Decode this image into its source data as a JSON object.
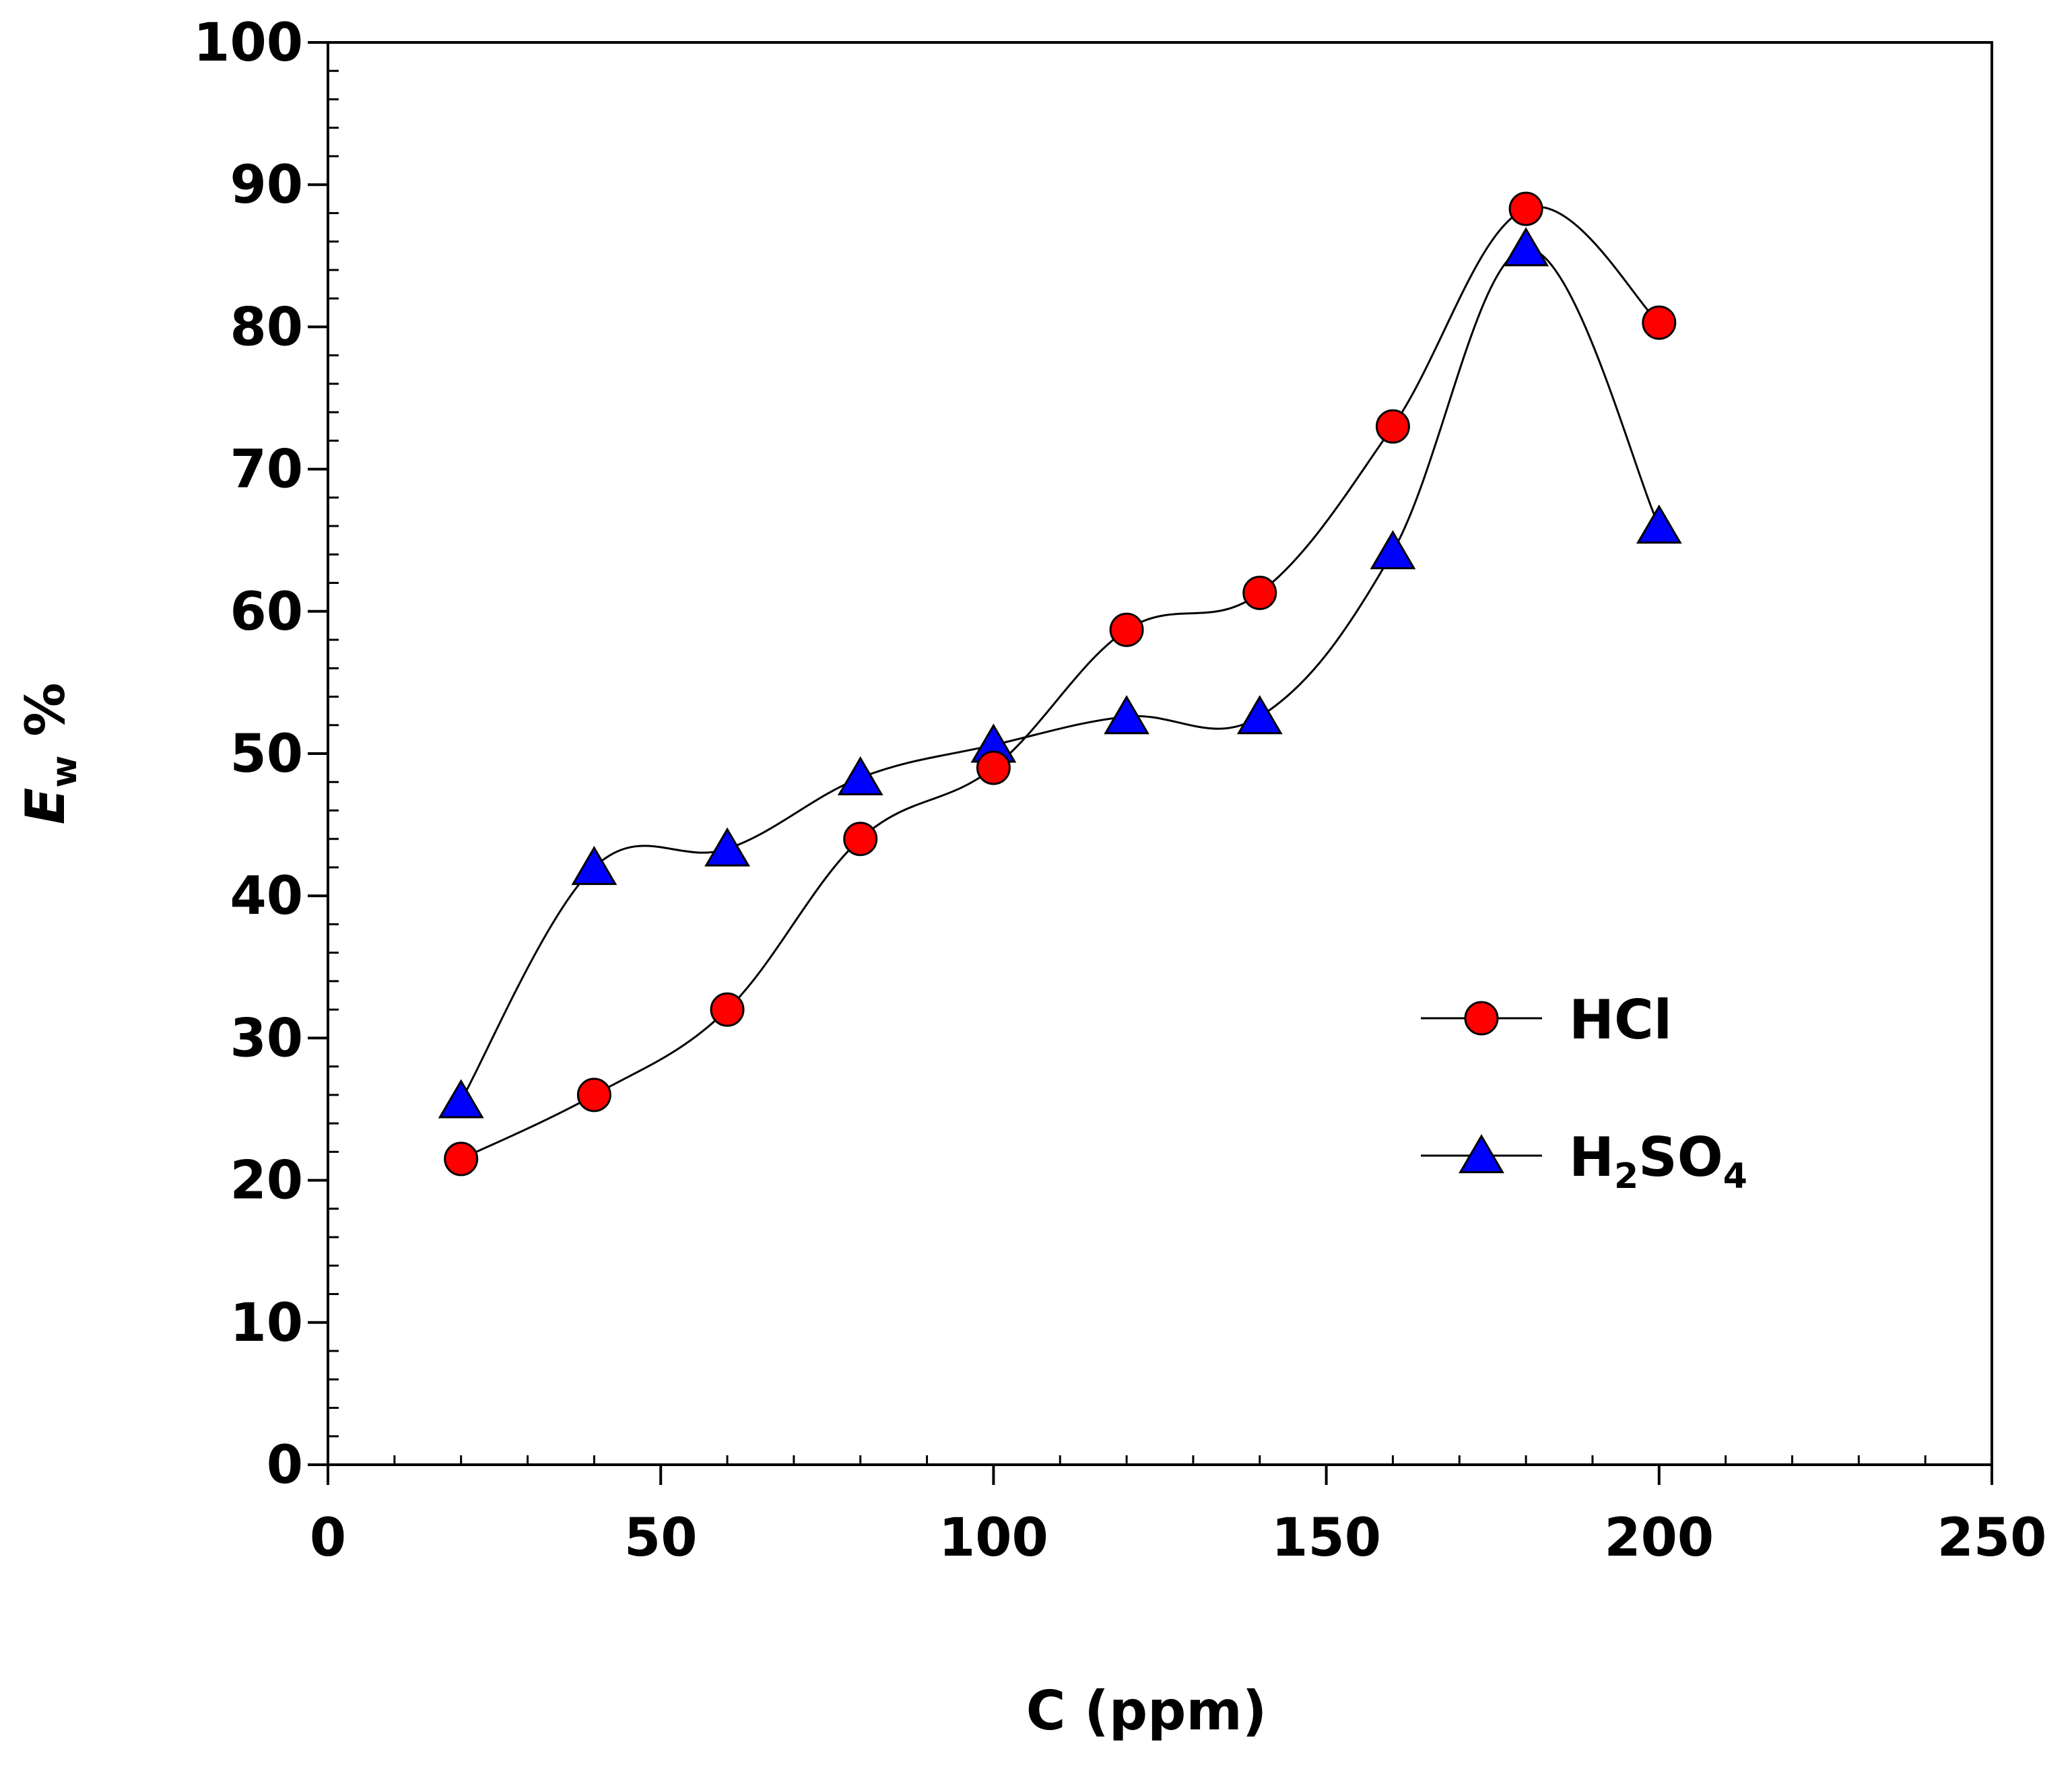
{
  "chart_data": {
    "type": "line",
    "title": "",
    "xlabel": "C  (ppm)",
    "ylabel": {
      "main": "E",
      "subscript": "w",
      "suffix": " %"
    },
    "xlim": [
      0,
      250
    ],
    "ylim": [
      0,
      100
    ],
    "x_major_ticks": [
      0,
      50,
      100,
      150,
      200,
      250
    ],
    "x_tick_labels": [
      "0",
      "50",
      "100",
      "150",
      "200",
      "250"
    ],
    "x_minor_step": 10,
    "y_major_ticks": [
      0,
      10,
      20,
      30,
      40,
      50,
      60,
      70,
      80,
      90,
      100
    ],
    "y_tick_labels": [
      "0",
      "10",
      "20",
      "30",
      "40",
      "50",
      "60",
      "70",
      "80",
      "90",
      "100"
    ],
    "y_minor_step": 2,
    "grid": false,
    "legend_position": "right-center",
    "series": [
      {
        "name": "HCl",
        "label_parts": [
          {
            "text": "HCl",
            "sub": false
          }
        ],
        "marker": "circle",
        "color": "#ff0000",
        "x": [
          20,
          40,
          60,
          80,
          100,
          120,
          140,
          160,
          180,
          200
        ],
        "y": [
          21.5,
          26,
          32,
          44,
          49,
          58.7,
          61.3,
          73,
          88.3,
          80.3
        ]
      },
      {
        "name": "H2SO4",
        "label_parts": [
          {
            "text": "H",
            "sub": false
          },
          {
            "text": "2",
            "sub": true
          },
          {
            "text": "SO",
            "sub": false
          },
          {
            "text": "4",
            "sub": true
          }
        ],
        "marker": "triangle",
        "color": "#0000ff",
        "x": [
          20,
          40,
          60,
          80,
          100,
          120,
          140,
          160,
          180,
          200
        ],
        "y": [
          25.6,
          42,
          43.3,
          48.3,
          50.6,
          52.6,
          52.6,
          64.2,
          85.5,
          66
        ]
      }
    ]
  }
}
